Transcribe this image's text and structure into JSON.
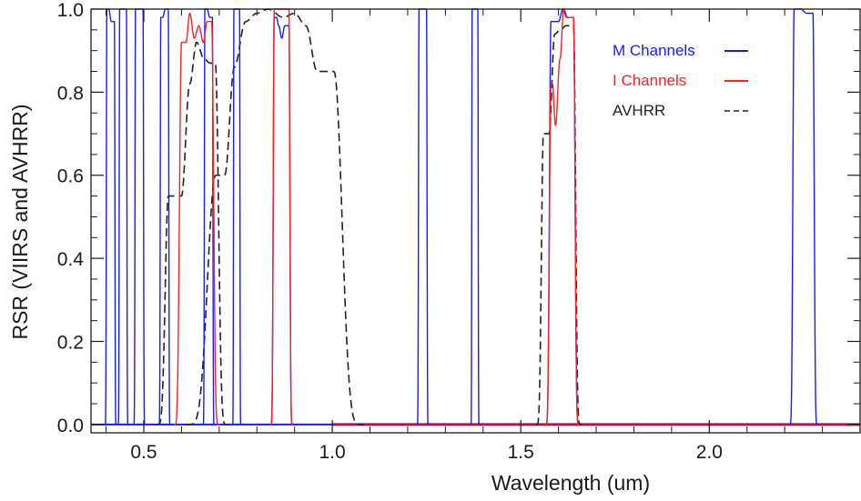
{
  "chart_data": {
    "type": "line",
    "title": "",
    "xlabel": "Wavelength (um)",
    "ylabel": "RSR (VIIRS and AVHRR)",
    "xlim": [
      0.36,
      2.4
    ],
    "ylim": [
      -0.02,
      1.0
    ],
    "x_ticks": [
      0.5,
      1.0,
      1.5,
      2.0
    ],
    "x_tick_labels": [
      "0.5",
      "1.0",
      "1.5",
      "2.0"
    ],
    "y_ticks": [
      0.0,
      0.2,
      0.4,
      0.6,
      0.8,
      1.0
    ],
    "y_tick_labels": [
      "0.0",
      "0.2",
      "0.4",
      "0.6",
      "0.8",
      "1.0"
    ],
    "grid": false,
    "legend": {
      "position": "top-right",
      "entries": [
        {
          "label": "M Channels",
          "color": "#1a1aff",
          "style": "solid"
        },
        {
          "label": "I Channels",
          "color": "#ff2020",
          "style": "solid"
        },
        {
          "label": "AVHRR",
          "color": "#222222",
          "style": "dashed"
        }
      ]
    },
    "series": [
      {
        "name": "M Channels",
        "color": "#1a1aff",
        "dash": false,
        "bands": [
          {
            "lo": 0.402,
            "hi": 0.422,
            "peaks": [
              [
                0.407,
                1.0
              ],
              [
                0.414,
                0.97
              ]
            ]
          },
          {
            "lo": 0.436,
            "hi": 0.454,
            "peaks": [
              [
                0.445,
                1.0
              ]
            ]
          },
          {
            "lo": 0.478,
            "hi": 0.498,
            "peaks": [
              [
                0.488,
                1.0
              ]
            ]
          },
          {
            "lo": 0.545,
            "hi": 0.565,
            "peaks": [
              [
                0.55,
                0.98
              ],
              [
                0.557,
                1.0
              ]
            ]
          },
          {
            "lo": 0.662,
            "hi": 0.682,
            "peaks": [
              [
                0.668,
                1.0
              ],
              [
                0.675,
                0.98
              ]
            ]
          },
          {
            "lo": 0.739,
            "hi": 0.754,
            "peaks": [
              [
                0.746,
                1.0
              ]
            ]
          },
          {
            "lo": 0.846,
            "hi": 0.885,
            "peaks": [
              [
                0.852,
                0.98
              ],
              [
                0.858,
                0.96
              ],
              [
                0.866,
                0.93
              ],
              [
                0.874,
                0.96
              ]
            ]
          },
          {
            "lo": 1.23,
            "hi": 1.25,
            "peaks": [
              [
                1.24,
                1.0
              ]
            ]
          },
          {
            "lo": 1.371,
            "hi": 1.386,
            "peaks": [
              [
                1.378,
                1.0
              ]
            ]
          },
          {
            "lo": 1.58,
            "hi": 1.64,
            "peaks": [
              [
                1.6,
                0.97
              ],
              [
                1.612,
                1.0
              ],
              [
                1.622,
                0.98
              ]
            ]
          },
          {
            "lo": 2.225,
            "hi": 2.275,
            "peaks": [
              [
                2.243,
                1.0
              ],
              [
                2.258,
                0.99
              ]
            ]
          }
        ]
      },
      {
        "name": "I Channels",
        "color": "#ff2020",
        "dash": false,
        "bands": [
          {
            "lo": 0.6,
            "hi": 0.68,
            "peaks": [
              [
                0.612,
                0.92
              ],
              [
                0.622,
                0.99
              ],
              [
                0.634,
                0.93
              ],
              [
                0.646,
                0.96
              ],
              [
                0.658,
                0.92
              ],
              [
                0.668,
                0.97
              ]
            ]
          },
          {
            "lo": 0.846,
            "hi": 0.885,
            "peaks": [
              [
                0.853,
                1.0
              ],
              [
                0.862,
                1.0
              ]
            ]
          },
          {
            "lo": 1.58,
            "hi": 1.64,
            "peaks": [
              [
                1.584,
                0.82
              ],
              [
                1.592,
                0.72
              ],
              [
                1.604,
                0.88
              ],
              [
                1.614,
                1.0
              ],
              [
                1.624,
                0.98
              ]
            ]
          }
        ]
      },
      {
        "name": "AVHRR",
        "color": "#222222",
        "dash": true,
        "bands": [
          {
            "lo": 0.565,
            "hi": 0.69,
            "peaks": [
              [
                0.6,
                0.55
              ],
              [
                0.622,
                0.82
              ],
              [
                0.64,
                0.92
              ],
              [
                0.66,
                0.88
              ],
              [
                0.676,
                0.87
              ]
            ]
          },
          {
            "lo": 0.69,
            "hi": 1.005,
            "peaks": [
              [
                0.715,
                0.6
              ],
              [
                0.74,
                0.86
              ],
              [
                0.77,
                0.97
              ],
              [
                0.8,
                0.99
              ],
              [
                0.83,
                1.0
              ],
              [
                0.87,
                0.98
              ],
              [
                0.9,
                0.99
              ],
              [
                0.93,
                0.96
              ],
              [
                0.96,
                0.85
              ]
            ]
          },
          {
            "lo": 1.56,
            "hi": 1.64,
            "peaks": [
              [
                1.575,
                0.7
              ],
              [
                1.59,
                0.94
              ],
              [
                1.605,
                0.95
              ],
              [
                1.62,
                0.96
              ]
            ]
          }
        ]
      }
    ],
    "colors": {
      "m_channels": "#1a1aff",
      "i_channels": "#ff2020",
      "avhrr": "#222222",
      "baseline": "#b0105a"
    }
  }
}
